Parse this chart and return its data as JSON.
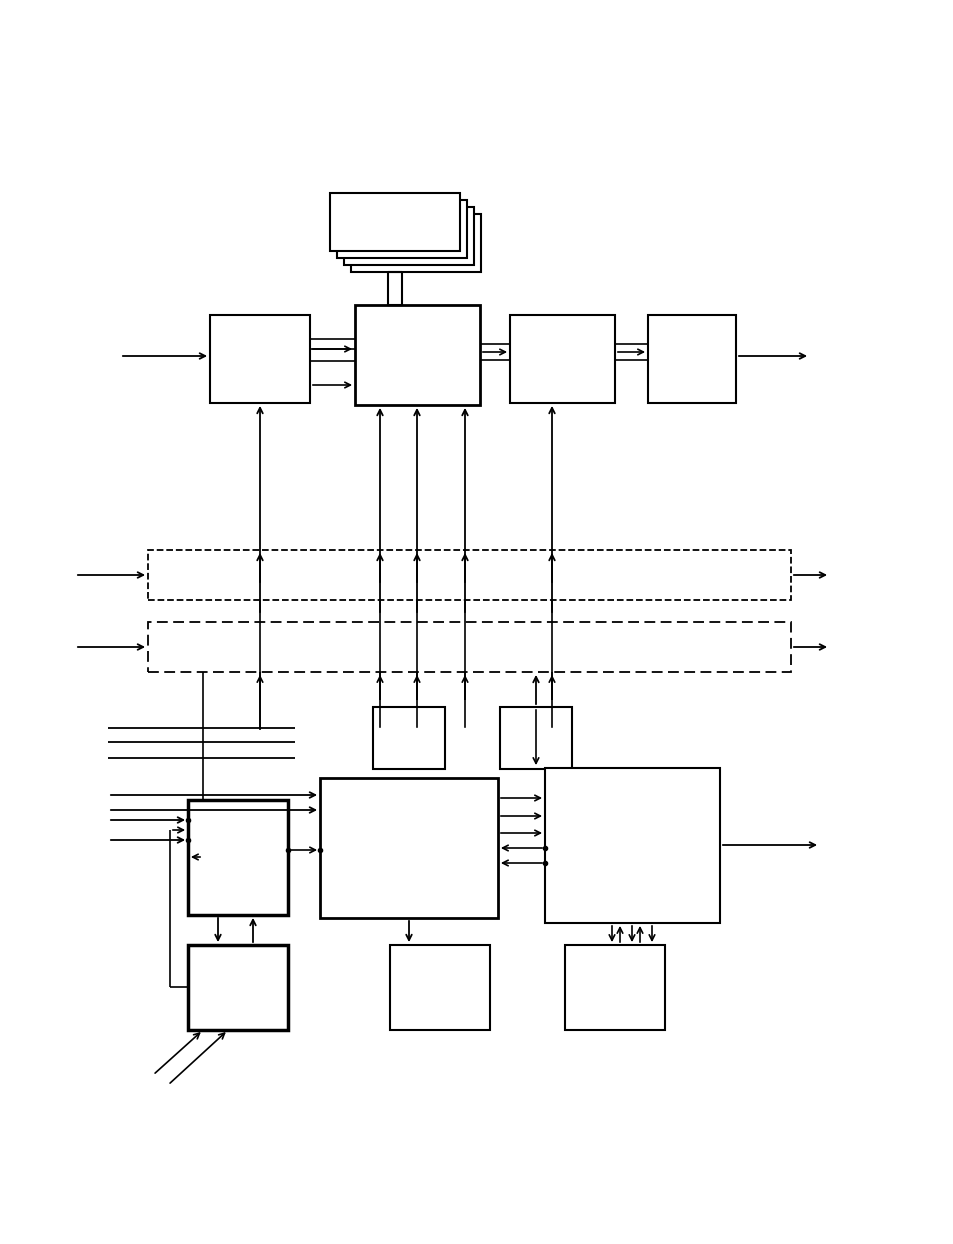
{
  "bg_color": "#ffffff",
  "line_color": "#000000",
  "fig_width": 9.54,
  "fig_height": 12.44,
  "dpi": 100
}
